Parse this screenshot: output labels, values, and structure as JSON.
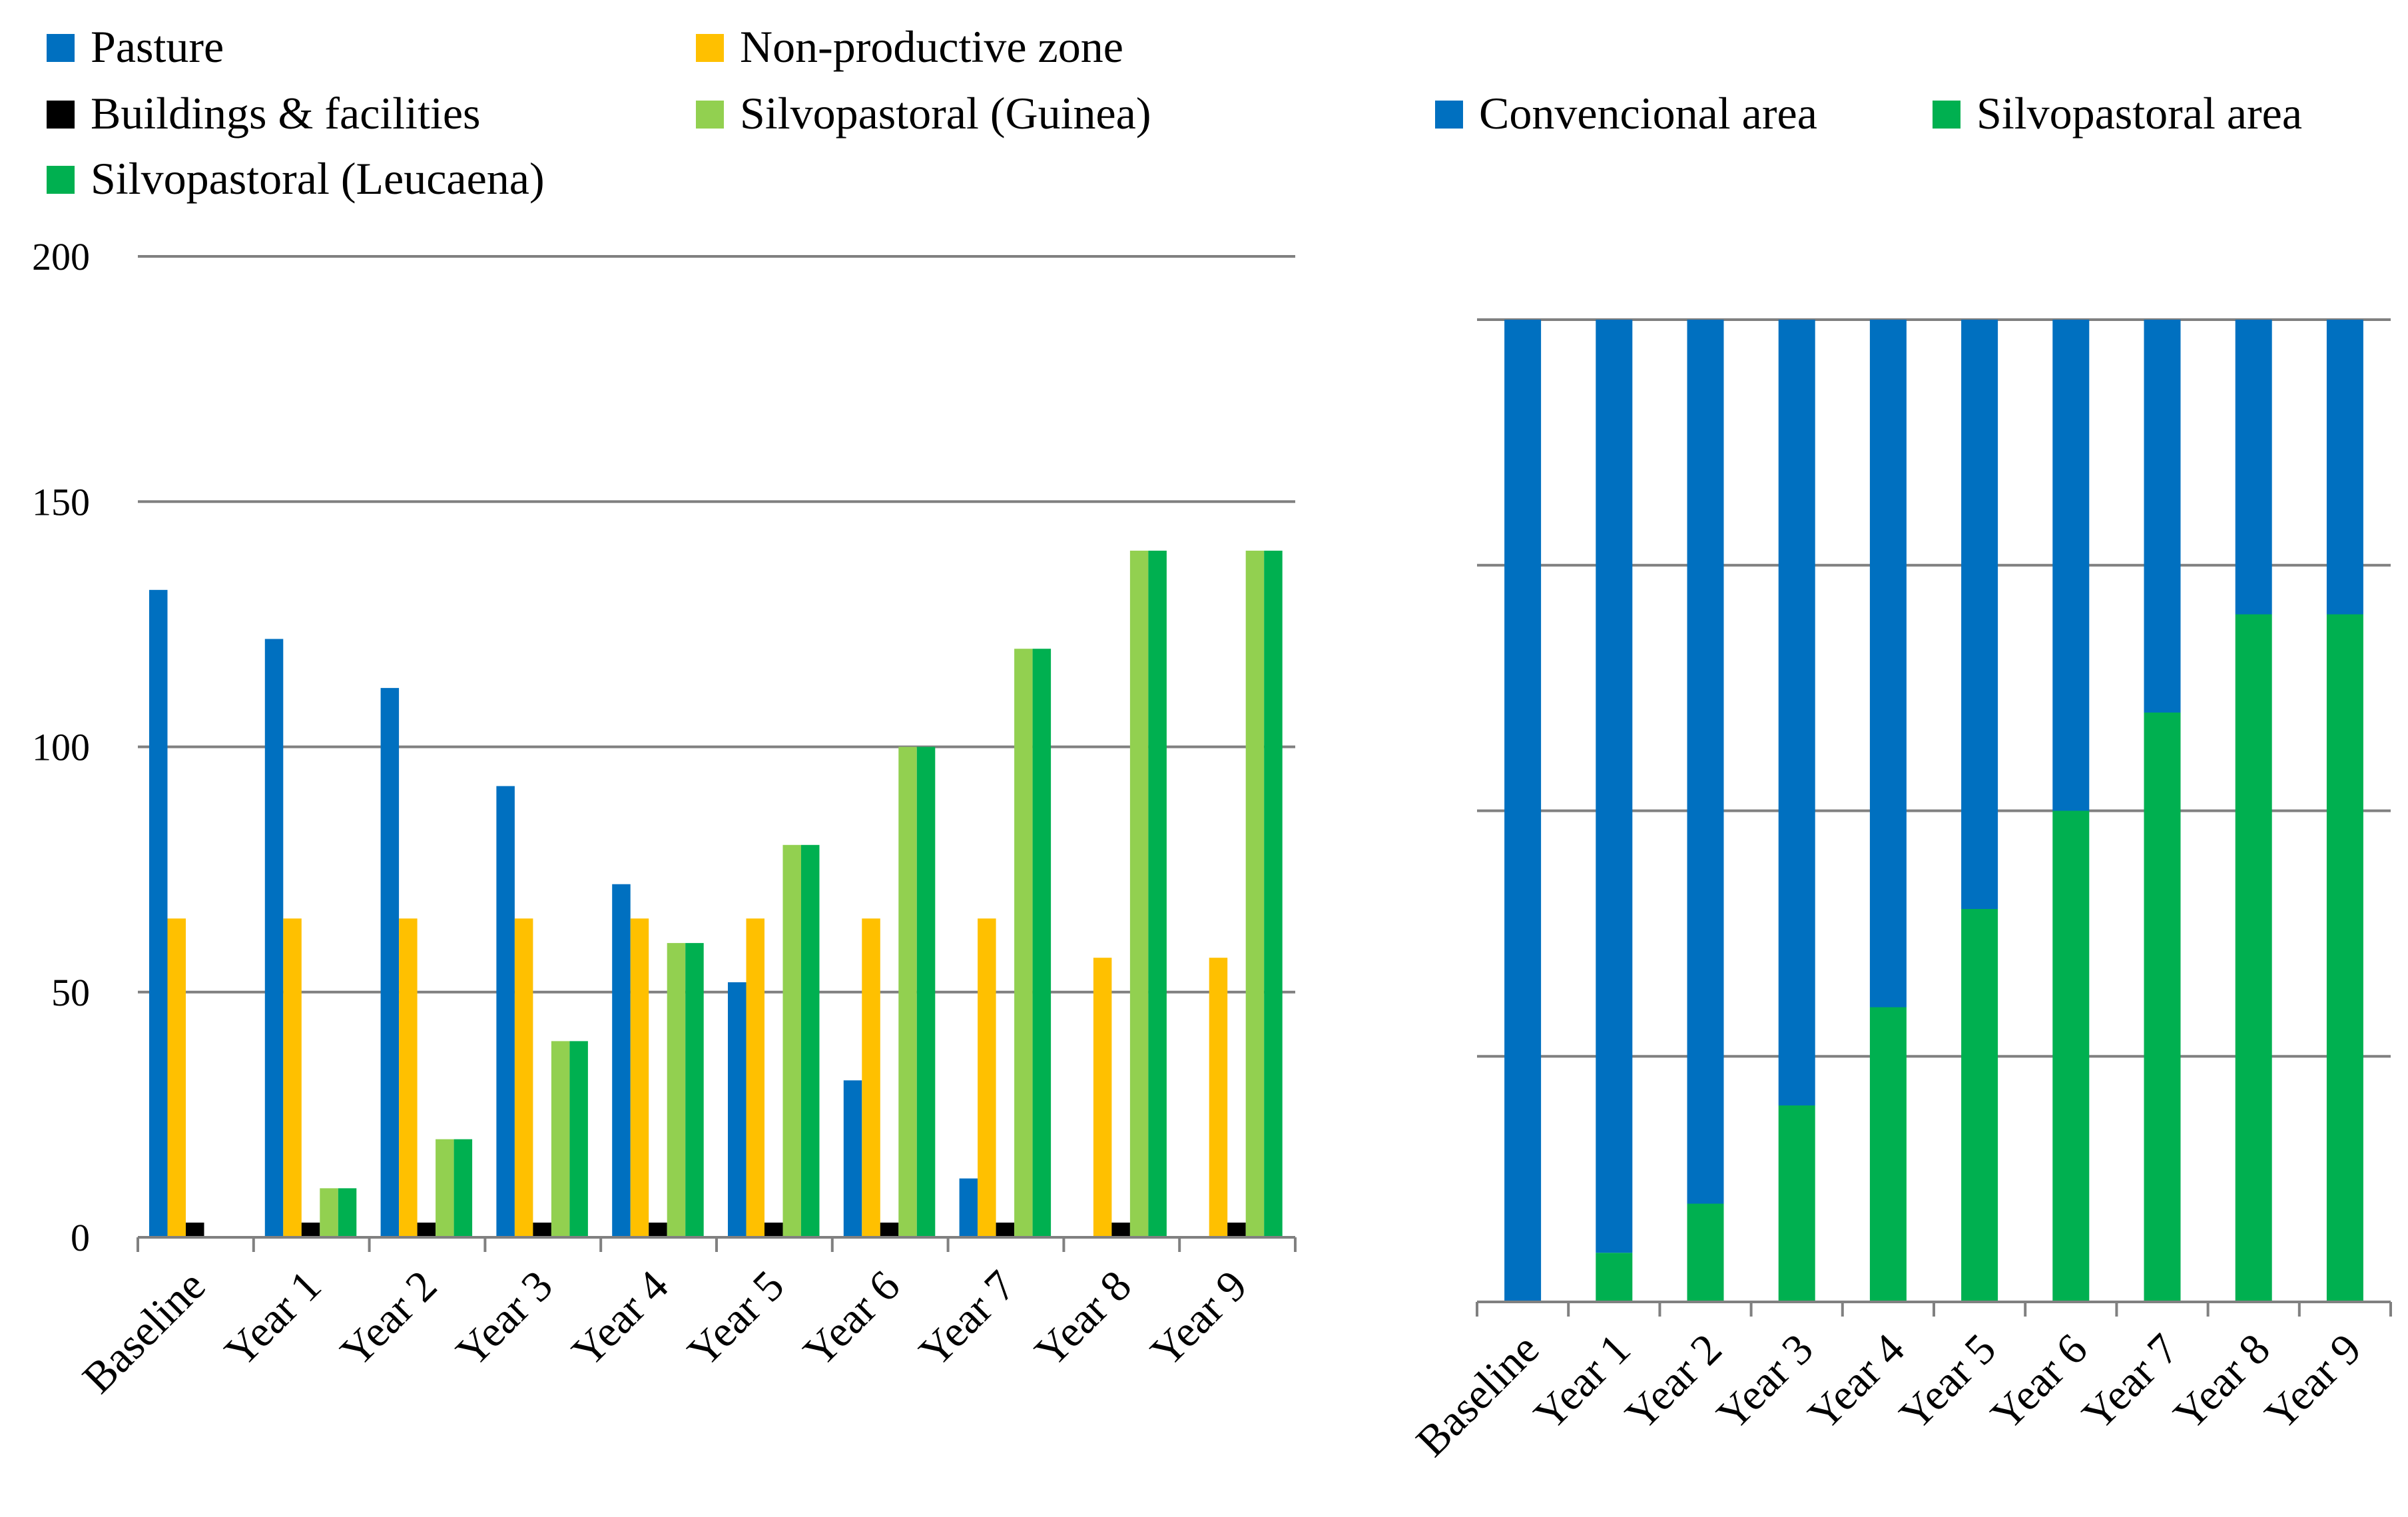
{
  "chart_data": [
    {
      "type": "bar",
      "title": "",
      "xlabel": "",
      "ylabel": "",
      "ylim": [
        0,
        200
      ],
      "yticks": [
        0,
        50,
        100,
        150,
        200
      ],
      "grid": true,
      "legend_position": "top",
      "categories": [
        "Baseline",
        "Year 1",
        "Year 2",
        "Year 3",
        "Year 4",
        "Year 5",
        "Year 6",
        "Year 7",
        "Year 8",
        "Year 9"
      ],
      "series": [
        {
          "name": "Pasture",
          "color": "#0070C0",
          "values": [
            132,
            122,
            112,
            92,
            72,
            52,
            32,
            12,
            0,
            0
          ]
        },
        {
          "name": "Non-productive zone",
          "color": "#FFC000",
          "values": [
            65,
            65,
            65,
            65,
            65,
            65,
            65,
            65,
            57,
            57
          ]
        },
        {
          "name": "Buildings & facilities",
          "color": "#000000",
          "values": [
            3,
            3,
            3,
            3,
            3,
            3,
            3,
            3,
            3,
            3
          ]
        },
        {
          "name": "Silvopastoral (Guinea)",
          "color": "#92D050",
          "values": [
            0,
            10,
            20,
            40,
            60,
            80,
            100,
            120,
            140,
            140
          ]
        },
        {
          "name": "Silvopastoral (Leucaena)",
          "color": "#00B050",
          "values": [
            0,
            10,
            20,
            40,
            60,
            80,
            100,
            120,
            140,
            140
          ]
        }
      ]
    },
    {
      "type": "stacked-bar-100",
      "title": "",
      "xlabel": "",
      "ylabel": "",
      "ylim": [
        0,
        100
      ],
      "grid": true,
      "legend_position": "top-right",
      "categories": [
        "Baseline",
        "Year 1",
        "Year 2",
        "Year 3",
        "Year 4",
        "Year 5",
        "Year 6",
        "Year 7",
        "Year 8",
        "Year 9"
      ],
      "series": [
        {
          "name": "Silvopastoral area",
          "color": "#00B050",
          "values": [
            0,
            5,
            10,
            20,
            30,
            40,
            50,
            60,
            70,
            70
          ]
        },
        {
          "name": "Convencional area",
          "color": "#0070C0",
          "values": [
            100,
            95,
            90,
            80,
            70,
            60,
            50,
            40,
            30,
            30
          ]
        }
      ],
      "legend_order": [
        "Convencional area",
        "Silvopastoral area"
      ]
    }
  ]
}
